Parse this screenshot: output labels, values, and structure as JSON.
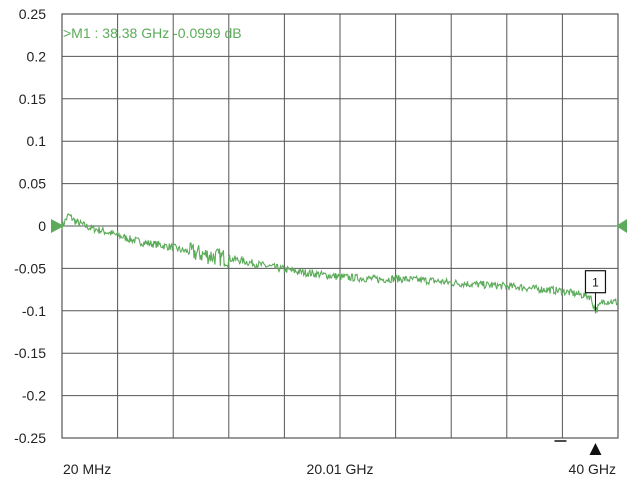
{
  "chart_data": {
    "type": "line",
    "title": "",
    "xlabel": "",
    "ylabel": "",
    "x_tick_labels": [
      "20 MHz",
      "20.01 GHz",
      "40 GHz"
    ],
    "x_tick_values_ghz": [
      0.02,
      20.01,
      40
    ],
    "x_range_ghz": [
      0.02,
      40
    ],
    "ylim": [
      -0.25,
      0.25
    ],
    "y_ticks": [
      0.25,
      0.2,
      0.15,
      0.1,
      0.05,
      0,
      -0.05,
      -0.1,
      -0.15,
      -0.2,
      -0.25
    ],
    "y_tick_labels": [
      "0.25",
      "0.2",
      "0.15",
      "0.1",
      "0.05",
      "0",
      "-0.05",
      "-0.1",
      "-0.15",
      "-0.2",
      "-0.25"
    ],
    "grid": true,
    "grid_divisions_x": 10,
    "series": [
      {
        "color": "#5cab5a",
        "x_ghz": [
          0.02,
          0.5,
          1,
          2,
          3,
          4,
          5,
          6,
          7,
          7.5,
          8,
          8.5,
          9,
          10,
          11,
          12,
          13,
          14,
          15,
          16,
          17,
          18,
          19,
          20,
          21,
          22,
          23,
          24,
          25,
          26,
          27,
          28,
          29,
          30,
          31,
          32,
          33,
          34,
          35,
          36,
          37,
          38,
          38.38,
          39,
          40
        ],
        "y_db": [
          0.0,
          0.013,
          0.005,
          -0.002,
          -0.006,
          -0.011,
          -0.016,
          -0.02,
          -0.022,
          -0.024,
          -0.025,
          -0.028,
          -0.03,
          -0.033,
          -0.036,
          -0.038,
          -0.041,
          -0.045,
          -0.048,
          -0.051,
          -0.054,
          -0.056,
          -0.058,
          -0.06,
          -0.061,
          -0.062,
          -0.063,
          -0.062,
          -0.063,
          -0.064,
          -0.065,
          -0.067,
          -0.068,
          -0.069,
          -0.07,
          -0.071,
          -0.072,
          -0.074,
          -0.075,
          -0.077,
          -0.08,
          -0.083,
          -0.0999,
          -0.088,
          -0.09
        ]
      }
    ],
    "marker": {
      "label": ">M1 :  38.38 GHz  -0.0999  dB",
      "number": "1",
      "x_ghz": 38.38,
      "y_db": -0.0999
    },
    "colors": {
      "trace": "#5cab5a",
      "grid": "#555555",
      "text": "#222222",
      "reference_arrow": "#5cab5a"
    }
  }
}
